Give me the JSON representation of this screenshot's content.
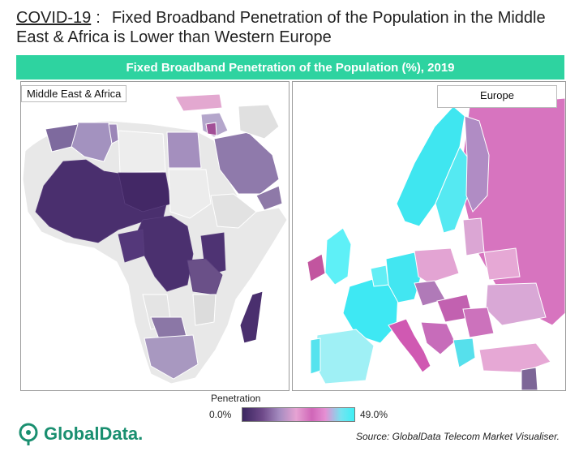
{
  "header": {
    "tag": "COVID-19",
    "separator": ":",
    "title": "Fixed Broadband Penetration of the Population in the Middle East & Africa is Lower than Western Europe"
  },
  "banner": {
    "title": "Fixed Broadband Penetration of the Population (%),  2019"
  },
  "panels": {
    "left_label": "Middle East & Africa",
    "right_label": "Europe"
  },
  "legend": {
    "title": "Penetration",
    "min": "0.0%",
    "max": "49.0%",
    "colors": [
      "#3b2660",
      "#a58cc0",
      "#d066b8",
      "#3ef0f5"
    ]
  },
  "logo": {
    "name": "GlobalData."
  },
  "source": "Source: GlobalData Telecom Market Visualiser."
}
